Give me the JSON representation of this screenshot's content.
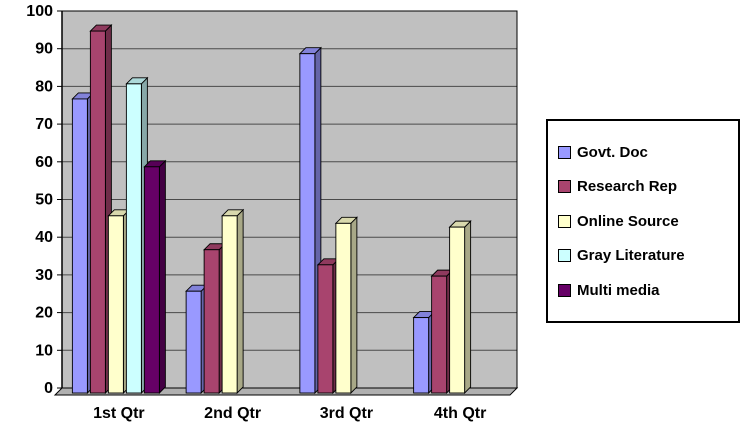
{
  "chart_data": {
    "type": "bar",
    "title": "",
    "xlabel": "",
    "ylabel": "",
    "categories": [
      "1st Qtr",
      "2nd Qtr",
      "3rd Qtr",
      "4th Qtr"
    ],
    "series": [
      {
        "name": "Govt. Doc",
        "color": "#9999FF",
        "values": [
          78,
          27,
          90,
          20
        ]
      },
      {
        "name": "Research Rep",
        "color": "#A8446E",
        "values": [
          96,
          38,
          34,
          31
        ]
      },
      {
        "name": "Online Source",
        "color": "#FFFFCC",
        "values": [
          47,
          47,
          45,
          44
        ]
      },
      {
        "name": "Gray Literature",
        "color": "#CCFFFF",
        "values": [
          82,
          0,
          0,
          0
        ]
      },
      {
        "name": "Multi media",
        "color": "#660066",
        "values": [
          60,
          0,
          0,
          0
        ]
      }
    ],
    "ylim": [
      0,
      100
    ],
    "yticks": [
      0,
      10,
      20,
      30,
      40,
      50,
      60,
      70,
      80,
      90,
      100
    ],
    "grid": true,
    "legend_position": "right",
    "plot_bg": "#C0C0C0",
    "gridline_color": "#4A4A4A",
    "floor_color": "#B0B0B0"
  }
}
